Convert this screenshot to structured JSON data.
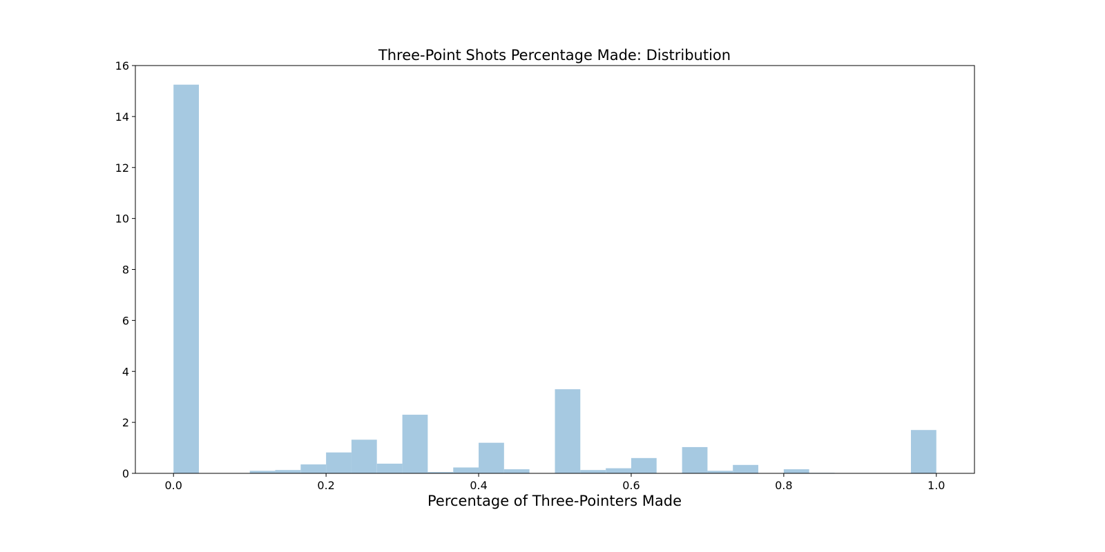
{
  "chart_data": {
    "type": "bar",
    "title": "Three-Point Shots Percentage Made: Distribution",
    "xlabel": "Percentage of Three-Pointers Made",
    "ylabel": "",
    "xlim": [
      -0.05,
      1.05
    ],
    "ylim": [
      0,
      16
    ],
    "xticks": [
      0.0,
      0.2,
      0.4,
      0.6,
      0.8,
      1.0
    ],
    "xtick_labels": [
      "0.0",
      "0.2",
      "0.4",
      "0.6",
      "0.8",
      "1.0"
    ],
    "yticks": [
      0,
      2,
      4,
      6,
      8,
      10,
      12,
      14,
      16
    ],
    "ytick_labels": [
      "0",
      "2",
      "4",
      "6",
      "8",
      "10",
      "12",
      "14",
      "16"
    ],
    "bin_width": 0.0333,
    "bins": [
      {
        "x0": 0.0,
        "value": 15.25
      },
      {
        "x0": 0.0333,
        "value": 0
      },
      {
        "x0": 0.0667,
        "value": 0
      },
      {
        "x0": 0.1,
        "value": 0.1
      },
      {
        "x0": 0.1333,
        "value": 0.13
      },
      {
        "x0": 0.1667,
        "value": 0.35
      },
      {
        "x0": 0.2,
        "value": 0.82
      },
      {
        "x0": 0.2333,
        "value": 1.32
      },
      {
        "x0": 0.2667,
        "value": 0.38
      },
      {
        "x0": 0.3,
        "value": 2.3
      },
      {
        "x0": 0.3333,
        "value": 0.05
      },
      {
        "x0": 0.3667,
        "value": 0.23
      },
      {
        "x0": 0.4,
        "value": 1.2
      },
      {
        "x0": 0.4333,
        "value": 0.16
      },
      {
        "x0": 0.4667,
        "value": 0
      },
      {
        "x0": 0.5,
        "value": 3.3
      },
      {
        "x0": 0.5333,
        "value": 0.13
      },
      {
        "x0": 0.5667,
        "value": 0.2
      },
      {
        "x0": 0.6,
        "value": 0.6
      },
      {
        "x0": 0.6333,
        "value": 0
      },
      {
        "x0": 0.6667,
        "value": 1.03
      },
      {
        "x0": 0.7,
        "value": 0.1
      },
      {
        "x0": 0.7333,
        "value": 0.33
      },
      {
        "x0": 0.7667,
        "value": 0
      },
      {
        "x0": 0.8,
        "value": 0.16
      },
      {
        "x0": 0.8333,
        "value": 0.02
      },
      {
        "x0": 0.8667,
        "value": 0
      },
      {
        "x0": 0.9,
        "value": 0
      },
      {
        "x0": 0.9333,
        "value": 0
      },
      {
        "x0": 0.9667,
        "value": 1.7
      }
    ],
    "bar_color": "#a6c9e1",
    "grid": false,
    "legend": "none"
  }
}
